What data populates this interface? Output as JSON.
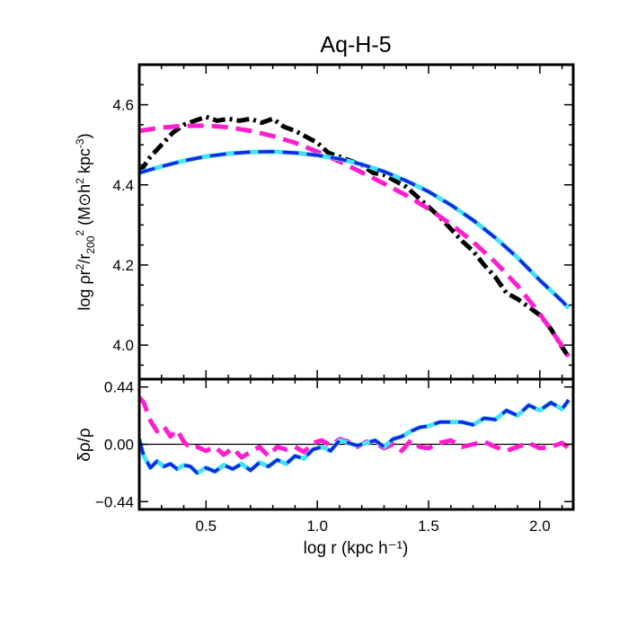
{
  "chart_data": [
    {
      "type": "line",
      "title": "Aq-H-5",
      "xlabel": "log r (kpc h⁻¹)",
      "ylabel": "log ρr²/r₂₀₀² (M⊙h² kpc⁻³)",
      "xlim": [
        0.2,
        2.15
      ],
      "ylim": [
        3.915,
        4.7
      ],
      "grid": false,
      "x_ticks": [
        0.5,
        1.0,
        1.5,
        2.0
      ],
      "x_tick_labels": [
        "0.5",
        "1.0",
        "1.5",
        "2.0"
      ],
      "y_ticks": [
        4.0,
        4.2,
        4.4,
        4.6
      ],
      "y_tick_labels": [
        "4.0",
        "4.2",
        "4.4",
        "4.6"
      ],
      "series": [
        {
          "style": "black-dash-dot",
          "color": "#000000",
          "x": [
            0.2,
            0.25,
            0.3,
            0.35,
            0.4,
            0.45,
            0.5,
            0.55,
            0.6,
            0.65,
            0.7,
            0.75,
            0.8,
            0.85,
            0.9,
            0.95,
            1.0,
            1.05,
            1.1,
            1.15,
            1.2,
            1.25,
            1.3,
            1.35,
            1.4,
            1.45,
            1.5,
            1.55,
            1.6,
            1.65,
            1.7,
            1.75,
            1.8,
            1.85,
            1.9,
            1.95,
            2.0,
            2.05,
            2.1,
            2.13
          ],
          "y": [
            4.43,
            4.47,
            4.5,
            4.53,
            4.55,
            4.56,
            4.57,
            4.56,
            4.565,
            4.56,
            4.565,
            4.555,
            4.565,
            4.545,
            4.535,
            4.52,
            4.505,
            4.48,
            4.47,
            4.46,
            4.45,
            4.43,
            4.425,
            4.41,
            4.395,
            4.37,
            4.345,
            4.32,
            4.29,
            4.26,
            4.235,
            4.2,
            4.17,
            4.13,
            4.115,
            4.095,
            4.075,
            4.04,
            3.995,
            3.97
          ]
        },
        {
          "style": "magenta-dashed",
          "color": "#ff1dce",
          "x": [
            0.2,
            0.3,
            0.4,
            0.5,
            0.6,
            0.7,
            0.8,
            0.9,
            1.0,
            1.1,
            1.2,
            1.3,
            1.4,
            1.5,
            1.6,
            1.7,
            1.8,
            1.9,
            2.0,
            2.1,
            2.13
          ],
          "y": [
            4.535,
            4.543,
            4.547,
            4.548,
            4.544,
            4.535,
            4.522,
            4.505,
            4.483,
            4.458,
            4.431,
            4.403,
            4.374,
            4.34,
            4.302,
            4.258,
            4.207,
            4.148,
            4.078,
            3.998,
            3.972
          ]
        },
        {
          "style": "cyan-line",
          "color": "#42e3f2",
          "x": [
            0.2,
            0.3,
            0.4,
            0.5,
            0.6,
            0.7,
            0.8,
            0.9,
            1.0,
            1.1,
            1.2,
            1.3,
            1.4,
            1.5,
            1.6,
            1.7,
            1.8,
            1.9,
            2.0,
            2.1,
            2.13
          ],
          "y": [
            4.43,
            4.446,
            4.46,
            4.471,
            4.478,
            4.482,
            4.483,
            4.48,
            4.474,
            4.465,
            4.451,
            4.433,
            4.41,
            4.383,
            4.35,
            4.312,
            4.268,
            4.218,
            4.162,
            4.11,
            4.092
          ]
        },
        {
          "style": "blue-dashed",
          "color": "#1a24e6",
          "x": [
            0.2,
            0.3,
            0.4,
            0.5,
            0.6,
            0.7,
            0.8,
            0.9,
            1.0,
            1.1,
            1.2,
            1.3,
            1.4,
            1.5,
            1.6,
            1.7,
            1.8,
            1.9,
            2.0,
            2.1,
            2.13
          ],
          "y": [
            4.43,
            4.446,
            4.46,
            4.471,
            4.478,
            4.482,
            4.483,
            4.48,
            4.474,
            4.465,
            4.451,
            4.433,
            4.41,
            4.383,
            4.35,
            4.312,
            4.268,
            4.218,
            4.162,
            4.11,
            4.092
          ]
        }
      ]
    },
    {
      "type": "line",
      "xlabel": "log r (kpc h⁻¹)",
      "ylabel": "δρ/ρ",
      "xlim": [
        0.2,
        2.15
      ],
      "ylim": [
        -0.5,
        0.5
      ],
      "grid": false,
      "x_ticks": [
        0.5,
        1.0,
        1.5,
        2.0
      ],
      "x_tick_labels": [
        "0.5",
        "1.0",
        "1.5",
        "2.0"
      ],
      "y_ticks": [
        -0.44,
        0.0,
        0.44
      ],
      "y_tick_labels": [
        "−0.44",
        "0.00",
        "0.44"
      ],
      "reference_line": 0.0,
      "series": [
        {
          "style": "magenta-dashed",
          "color": "#ff1dce",
          "x": [
            0.2,
            0.22,
            0.25,
            0.28,
            0.31,
            0.34,
            0.37,
            0.4,
            0.43,
            0.46,
            0.5,
            0.54,
            0.58,
            0.62,
            0.66,
            0.7,
            0.74,
            0.78,
            0.82,
            0.86,
            0.9,
            0.94,
            0.98,
            1.02,
            1.06,
            1.1,
            1.14,
            1.18,
            1.22,
            1.26,
            1.3,
            1.34,
            1.38,
            1.42,
            1.46,
            1.5,
            1.55,
            1.6,
            1.65,
            1.7,
            1.75,
            1.8,
            1.85,
            1.9,
            1.95,
            2.0,
            2.05,
            2.1,
            2.13
          ],
          "y": [
            0.36,
            0.32,
            0.18,
            0.1,
            0.14,
            0.06,
            0.11,
            0.02,
            -0.03,
            -0.02,
            -0.05,
            -0.02,
            -0.08,
            -0.03,
            -0.1,
            -0.06,
            -0.02,
            -0.09,
            -0.02,
            -0.04,
            -0.02,
            -0.06,
            0.01,
            0.03,
            -0.01,
            0.04,
            0.02,
            -0.02,
            0.02,
            0.01,
            -0.03,
            0.0,
            -0.05,
            0.03,
            -0.02,
            -0.03,
            0.01,
            0.03,
            -0.02,
            0.0,
            0.02,
            -0.02,
            -0.05,
            -0.02,
            0.01,
            -0.03,
            -0.02,
            0.01,
            -0.03
          ]
        },
        {
          "style": "cyan-line",
          "color": "#42e3f2",
          "x": [
            0.2,
            0.22,
            0.25,
            0.28,
            0.31,
            0.34,
            0.37,
            0.4,
            0.43,
            0.46,
            0.5,
            0.54,
            0.58,
            0.62,
            0.66,
            0.7,
            0.74,
            0.78,
            0.82,
            0.86,
            0.9,
            0.94,
            0.98,
            1.02,
            1.06,
            1.1,
            1.14,
            1.18,
            1.22,
            1.26,
            1.3,
            1.34,
            1.38,
            1.42,
            1.46,
            1.5,
            1.55,
            1.6,
            1.65,
            1.7,
            1.75,
            1.8,
            1.85,
            1.9,
            1.95,
            2.0,
            2.05,
            2.1,
            2.13
          ],
          "y": [
            0.04,
            -0.09,
            -0.18,
            -0.13,
            -0.17,
            -0.15,
            -0.19,
            -0.16,
            -0.17,
            -0.22,
            -0.18,
            -0.21,
            -0.16,
            -0.19,
            -0.15,
            -0.2,
            -0.14,
            -0.17,
            -0.12,
            -0.15,
            -0.09,
            -0.11,
            -0.04,
            -0.02,
            -0.05,
            0.03,
            0.01,
            -0.01,
            0.01,
            0.03,
            -0.02,
            0.04,
            0.06,
            0.1,
            0.13,
            0.14,
            0.17,
            0.17,
            0.17,
            0.15,
            0.2,
            0.19,
            0.26,
            0.22,
            0.3,
            0.26,
            0.32,
            0.27,
            0.34
          ]
        },
        {
          "style": "blue-dashed",
          "color": "#1a24e6",
          "x": [
            0.2,
            0.22,
            0.25,
            0.28,
            0.31,
            0.34,
            0.37,
            0.4,
            0.43,
            0.46,
            0.5,
            0.54,
            0.58,
            0.62,
            0.66,
            0.7,
            0.74,
            0.78,
            0.82,
            0.86,
            0.9,
            0.94,
            0.98,
            1.02,
            1.06,
            1.1,
            1.14,
            1.18,
            1.22,
            1.26,
            1.3,
            1.34,
            1.38,
            1.42,
            1.46,
            1.5,
            1.55,
            1.6,
            1.65,
            1.7,
            1.75,
            1.8,
            1.85,
            1.9,
            1.95,
            2.0,
            2.05,
            2.1,
            2.13
          ],
          "y": [
            0.04,
            -0.09,
            -0.18,
            -0.13,
            -0.17,
            -0.15,
            -0.19,
            -0.16,
            -0.17,
            -0.22,
            -0.18,
            -0.21,
            -0.16,
            -0.19,
            -0.15,
            -0.2,
            -0.14,
            -0.17,
            -0.12,
            -0.15,
            -0.09,
            -0.11,
            -0.04,
            -0.02,
            -0.05,
            0.03,
            0.01,
            -0.01,
            0.01,
            0.03,
            -0.02,
            0.04,
            0.06,
            0.1,
            0.13,
            0.14,
            0.17,
            0.17,
            0.17,
            0.15,
            0.2,
            0.19,
            0.26,
            0.22,
            0.3,
            0.26,
            0.32,
            0.27,
            0.34
          ]
        }
      ]
    }
  ]
}
